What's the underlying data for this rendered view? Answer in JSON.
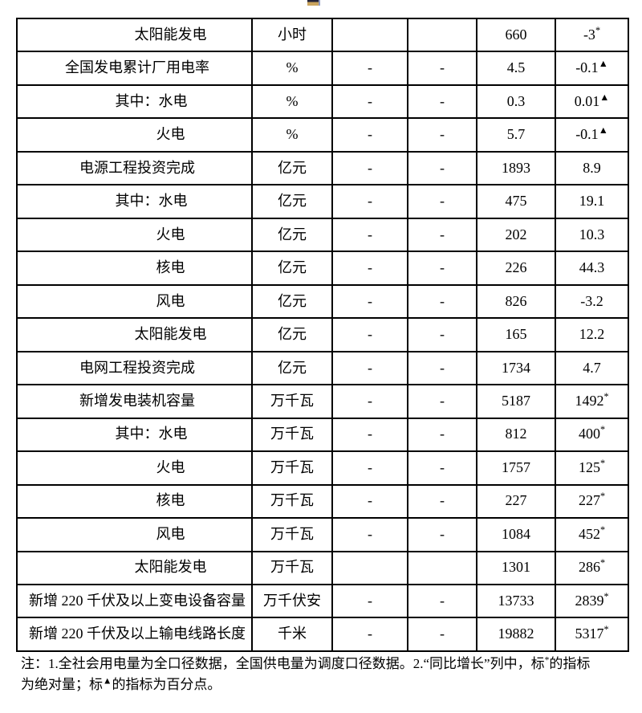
{
  "colors": {
    "background": "#ffffff",
    "text": "#000000",
    "table_border": "#000000",
    "fragment_dark": "#23233a",
    "fragment_tan": "#caa45e"
  },
  "table": {
    "rows": [
      {
        "label": "太阳能发电",
        "indent": 2,
        "unit": "小时",
        "c3": "",
        "c4": "",
        "value": "660",
        "growth": "-3*"
      },
      {
        "label": "全国发电累计厂用电率",
        "indent": 0,
        "unit": "%",
        "c3": "-",
        "c4": "-",
        "value": "4.5",
        "growth": "-0.1▲"
      },
      {
        "label": "其中：水电",
        "indent": 1,
        "unit": "%",
        "c3": "-",
        "c4": "-",
        "value": "0.3",
        "growth": "0.01▲"
      },
      {
        "label": "火电",
        "indent": 2,
        "unit": "%",
        "c3": "-",
        "c4": "-",
        "value": "5.7",
        "growth": "-0.1▲"
      },
      {
        "label": "电源工程投资完成",
        "indent": 0,
        "unit": "亿元",
        "c3": "-",
        "c4": "-",
        "value": "1893",
        "growth": "8.9"
      },
      {
        "label": "其中：水电",
        "indent": 1,
        "unit": "亿元",
        "c3": "-",
        "c4": "-",
        "value": "475",
        "growth": "19.1"
      },
      {
        "label": "火电",
        "indent": 2,
        "unit": "亿元",
        "c3": "-",
        "c4": "-",
        "value": "202",
        "growth": "10.3"
      },
      {
        "label": "核电",
        "indent": 2,
        "unit": "亿元",
        "c3": "-",
        "c4": "-",
        "value": "226",
        "growth": "44.3"
      },
      {
        "label": "风电",
        "indent": 2,
        "unit": "亿元",
        "c3": "-",
        "c4": "-",
        "value": "826",
        "growth": "-3.2"
      },
      {
        "label": "太阳能发电",
        "indent": 2,
        "unit": "亿元",
        "c3": "-",
        "c4": "-",
        "value": "165",
        "growth": "12.2"
      },
      {
        "label": "电网工程投资完成",
        "indent": 0,
        "unit": "亿元",
        "c3": "-",
        "c4": "-",
        "value": "1734",
        "growth": "4.7"
      },
      {
        "label": "新增发电装机容量",
        "indent": 0,
        "unit": "万千瓦",
        "c3": "-",
        "c4": "-",
        "value": "5187",
        "growth": "1492*"
      },
      {
        "label": "其中：水电",
        "indent": 1,
        "unit": "万千瓦",
        "c3": "-",
        "c4": "-",
        "value": "812",
        "growth": "400*"
      },
      {
        "label": "火电",
        "indent": 2,
        "unit": "万千瓦",
        "c3": "-",
        "c4": "-",
        "value": "1757",
        "growth": "125*"
      },
      {
        "label": "核电",
        "indent": 2,
        "unit": "万千瓦",
        "c3": "-",
        "c4": "-",
        "value": "227",
        "growth": "227*"
      },
      {
        "label": "风电",
        "indent": 2,
        "unit": "万千瓦",
        "c3": "-",
        "c4": "-",
        "value": "1084",
        "growth": "452*"
      },
      {
        "label": "太阳能发电",
        "indent": 2,
        "unit": "万千瓦",
        "c3": "",
        "c4": "",
        "value": "1301",
        "growth": "286*"
      },
      {
        "label": "新增 220 千伏及以上变电设备容量",
        "indent": 0,
        "unit": "万千伏安",
        "c3": "-",
        "c4": "-",
        "value": "13733",
        "growth": "2839*"
      },
      {
        "label": "新增 220 千伏及以上输电线路长度",
        "indent": 0,
        "unit": "千米",
        "c3": "-",
        "c4": "-",
        "value": "19882",
        "growth": "5317*"
      }
    ]
  },
  "footnote": {
    "line1": "注：1.全社会用电量为全口径数据，全国供电量为调度口径数据。2.“同比增长”列中，标*的指标",
    "line2": "为绝对量；标▲的指标为百分点。"
  }
}
